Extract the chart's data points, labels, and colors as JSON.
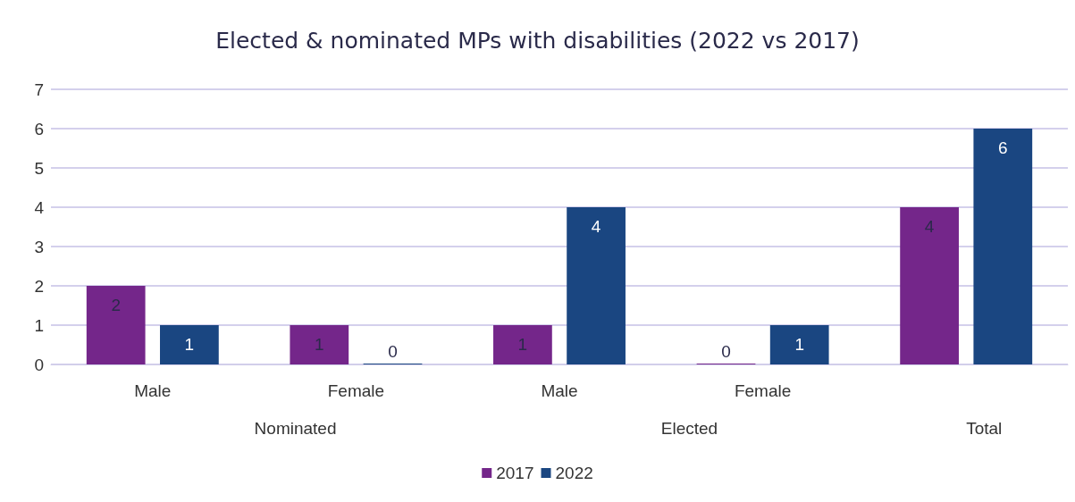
{
  "chart_data": {
    "type": "bar",
    "title": "Elected & nominated MPs with disabilities (2022 vs 2017)",
    "categories": [
      "Male",
      "Female",
      "Male",
      "Female",
      null
    ],
    "annotations": [
      "Nominated",
      "Elected",
      "Total"
    ],
    "series": [
      {
        "name": "2017",
        "color": "#74268a",
        "values": [
          2,
          1,
          1,
          0,
          4
        ]
      },
      {
        "name": "2022",
        "color": "#1a4681",
        "values": [
          1,
          0,
          4,
          1,
          6
        ]
      }
    ],
    "ylim": [
      0,
      7
    ],
    "yticks": [
      0,
      1,
      2,
      3,
      4,
      5,
      6,
      7
    ],
    "grid": "y",
    "legend": "bottom",
    "data_labels": true
  }
}
